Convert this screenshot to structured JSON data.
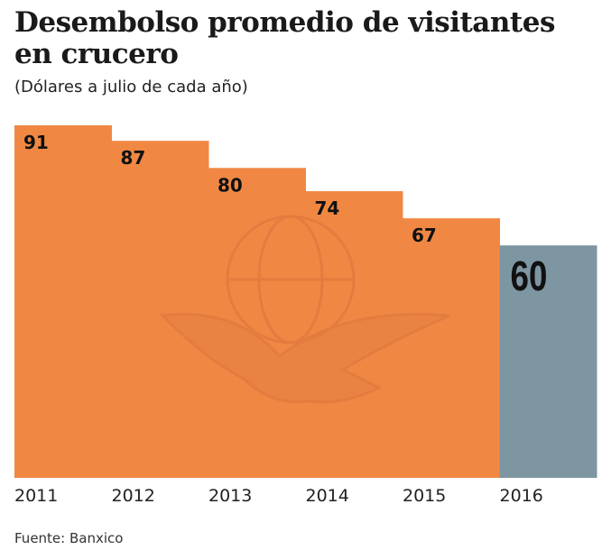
{
  "chart_data": {
    "type": "bar",
    "title": "Desembolso promedio de visitantes en crucero",
    "subtitle": "(Dólares a julio de cada año)",
    "categories": [
      "2011",
      "2012",
      "2013",
      "2014",
      "2015",
      "2016"
    ],
    "values": [
      91,
      87,
      80,
      74,
      67,
      60
    ],
    "ylim": [
      0,
      91
    ],
    "grid": false,
    "colors": {
      "past": "#f08844",
      "highlight": "#7e95a2",
      "watermark": "#d9733a"
    },
    "highlight_category": "2016",
    "source": "Fuente: Banxico"
  }
}
